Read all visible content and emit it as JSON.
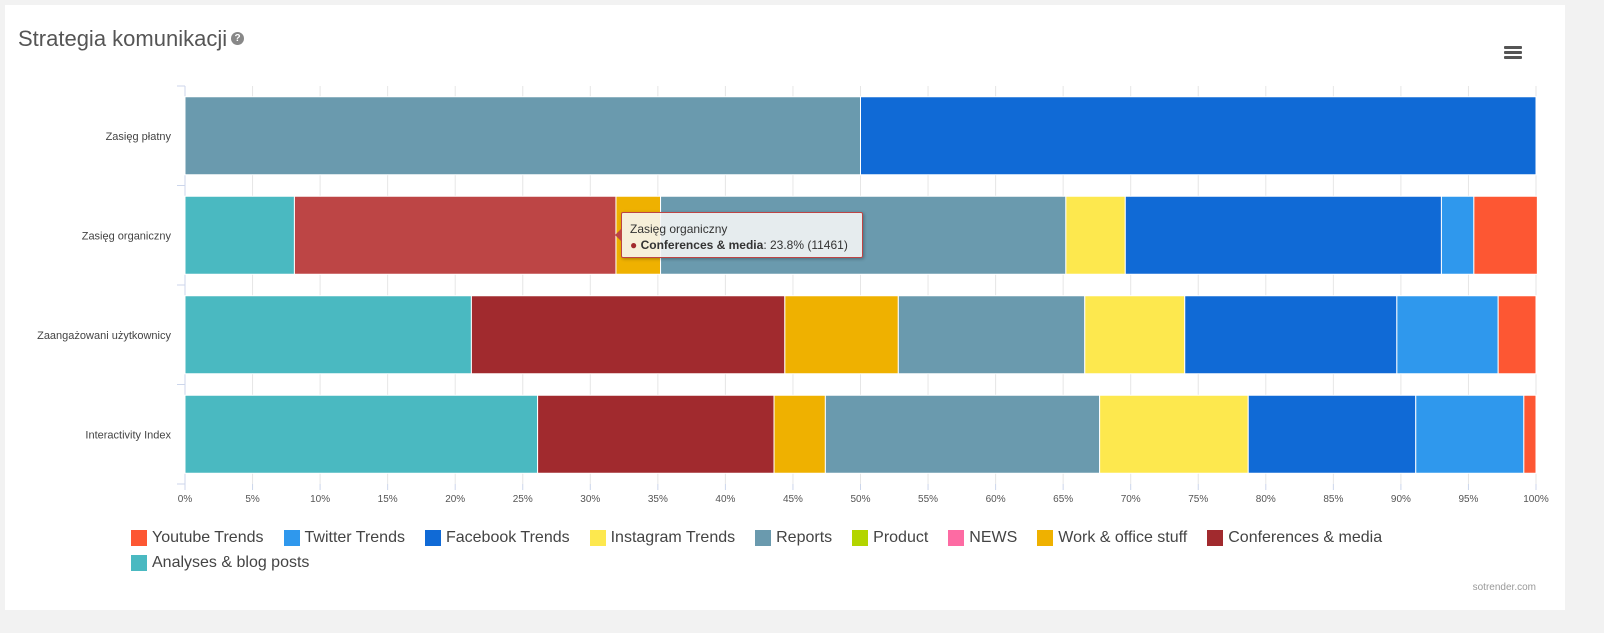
{
  "header": {
    "title": "Strategia komunikacji",
    "help_icon": "?"
  },
  "credit": "sotrender.com",
  "tooltip": {
    "category": "Zasięg organiczny",
    "series": "Conferences & media",
    "value": ": 23.8% (11461)"
  },
  "chart_data": {
    "type": "bar",
    "orientation": "horizontal",
    "stacking": "percent",
    "title": "Strategia komunikacji",
    "categories": [
      "Zasięg płatny",
      "Zasięg organiczny",
      "Zaangażowani użytkownicy",
      "Interactivity Index"
    ],
    "xlim": [
      0,
      100
    ],
    "xticks": [
      "0%",
      "5%",
      "10%",
      "15%",
      "20%",
      "25%",
      "30%",
      "35%",
      "40%",
      "45%",
      "50%",
      "55%",
      "60%",
      "65%",
      "70%",
      "75%",
      "80%",
      "85%",
      "90%",
      "95%",
      "100%"
    ],
    "legend_position": "bottom",
    "series": [
      {
        "name": "Youtube Trends",
        "color": "#fd5733",
        "values": [
          0,
          4.7,
          2.8,
          0.9
        ]
      },
      {
        "name": "Twitter Trends",
        "color": "#2f98ed",
        "values": [
          0,
          2.4,
          7.5,
          8.0
        ]
      },
      {
        "name": "Facebook Trends",
        "color": "#106ad6",
        "values": [
          50,
          23.4,
          15.7,
          12.4
        ]
      },
      {
        "name": "Instagram Trends",
        "color": "#fde84e",
        "values": [
          0,
          4.4,
          7.4,
          11.0
        ]
      },
      {
        "name": "Reports",
        "color": "#6a9aae",
        "values": [
          50,
          30.0,
          13.8,
          20.3
        ]
      },
      {
        "name": "Product",
        "color": "#b3d500",
        "values": [
          0,
          0,
          0,
          0
        ]
      },
      {
        "name": "NEWS",
        "color": "#fd6ba3",
        "values": [
          0,
          0,
          0,
          0
        ]
      },
      {
        "name": "Work & office stuff",
        "color": "#efb100",
        "values": [
          0,
          3.3,
          8.4,
          3.8
        ]
      },
      {
        "name": "Conferences & media",
        "color": "#a12a2e",
        "values": [
          0,
          23.8,
          23.2,
          17.5
        ]
      },
      {
        "name": "Analyses & blog posts",
        "color": "#4ab9c1",
        "values": [
          0,
          8.1,
          21.2,
          26.1
        ]
      }
    ]
  }
}
